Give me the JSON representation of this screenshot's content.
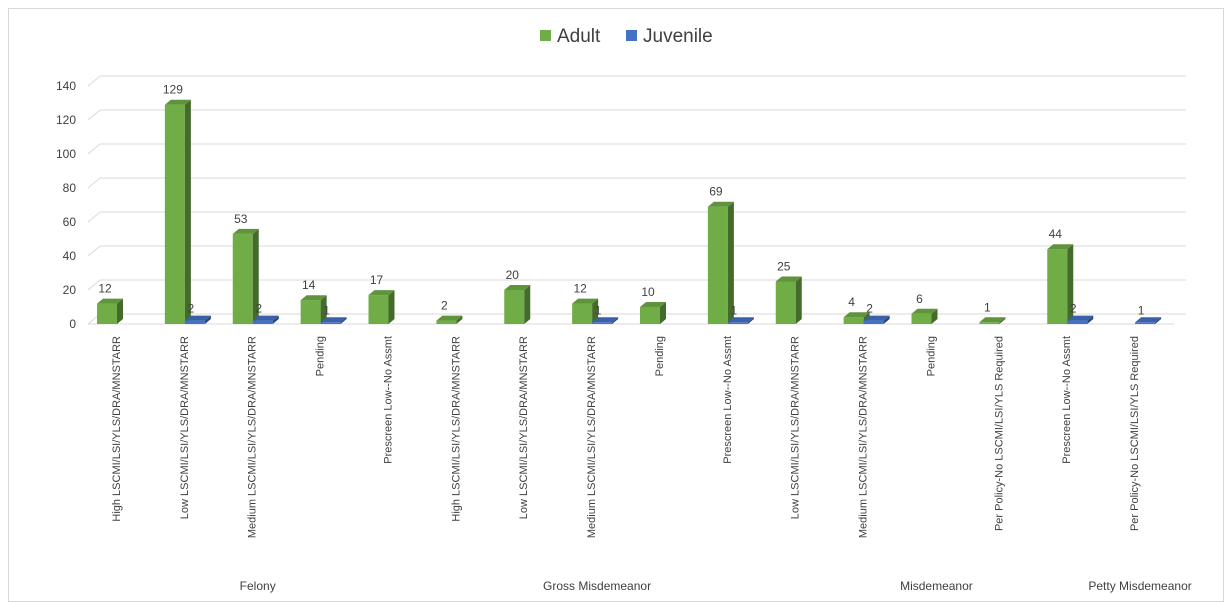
{
  "chart_data": {
    "type": "bar",
    "title": "",
    "xlabel": "",
    "ylabel": "",
    "ylim": [
      0,
      140
    ],
    "yticks": [
      0,
      20,
      40,
      60,
      80,
      100,
      120,
      140
    ],
    "grid": true,
    "legend_position": "top-center",
    "style": "3d-clustered-column",
    "colors": {
      "Adult": "#70AD47",
      "Juvenile": "#4472C4"
    },
    "groups": [
      {
        "name": "Felony",
        "categories": [
          "High LSCMI/LSI/YLS/DRA/MNSTARR",
          "Low LSCMI/LSI/YLS/DRA/MNSTARR",
          "Medium LSCMI/LSI/YLS/DRA/MNSTARR",
          "Pending",
          "Prescreen Low--No Assmt"
        ]
      },
      {
        "name": "Gross Misdemeanor",
        "categories": [
          "High LSCMI/LSI/YLS/DRA/MNSTARR",
          "Low LSCMI/LSI/YLS/DRA/MNSTARR",
          "Medium LSCMI/LSI/YLS/DRA/MNSTARR",
          "Pending",
          "Prescreen Low--No Assmt"
        ]
      },
      {
        "name": "Misdemeanor",
        "categories": [
          "Low LSCMI/LSI/YLS/DRA/MNSTARR",
          "Medium LSCMI/LSI/YLS/DRA/MNSTARR",
          "Pending",
          "Per Policy-No LSCMI/LSI/YLS Required",
          "Prescreen Low--No Assmt"
        ]
      },
      {
        "name": "Petty Misdemeanor",
        "categories": [
          "Per Policy-No LSCMI/LSI/YLS Required"
        ]
      }
    ],
    "categories": [
      "High LSCMI/LSI/YLS/DRA/MNSTARR",
      "Low LSCMI/LSI/YLS/DRA/MNSTARR",
      "Medium LSCMI/LSI/YLS/DRA/MNSTARR",
      "Pending",
      "Prescreen Low--No Assmt",
      "High LSCMI/LSI/YLS/DRA/MNSTARR",
      "Low LSCMI/LSI/YLS/DRA/MNSTARR",
      "Medium LSCMI/LSI/YLS/DRA/MNSTARR",
      "Pending",
      "Prescreen Low--No Assmt",
      "Low LSCMI/LSI/YLS/DRA/MNSTARR",
      "Medium LSCMI/LSI/YLS/DRA/MNSTARR",
      "Pending",
      "Per Policy-No LSCMI/LSI/YLS Required",
      "Prescreen Low--No Assmt",
      "Per Policy-No LSCMI/LSI/YLS Required"
    ],
    "series": [
      {
        "name": "Adult",
        "values": [
          12,
          129,
          53,
          14,
          17,
          2,
          20,
          12,
          10,
          69,
          25,
          4,
          6,
          1,
          44,
          null
        ]
      },
      {
        "name": "Juvenile",
        "values": [
          null,
          2,
          2,
          1,
          null,
          null,
          null,
          1,
          null,
          1,
          null,
          2,
          null,
          null,
          2,
          1
        ]
      }
    ]
  }
}
